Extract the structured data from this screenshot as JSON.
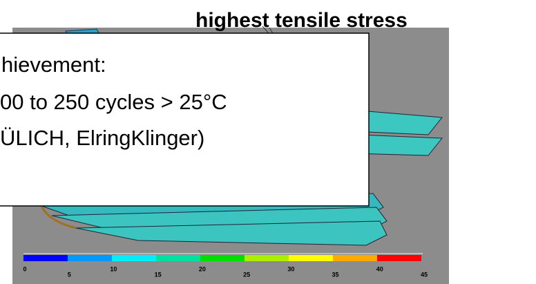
{
  "label": "highest tensile stress",
  "text_box": {
    "lines": [
      "hievement:",
      "00 to 250 cycles > 25°C",
      "ÜLICH, ElringKlinger)"
    ]
  },
  "colorbar": {
    "labels": [
      "0",
      "5",
      "10",
      "15",
      "20",
      "25",
      "30",
      "35",
      "40",
      "45"
    ]
  }
}
